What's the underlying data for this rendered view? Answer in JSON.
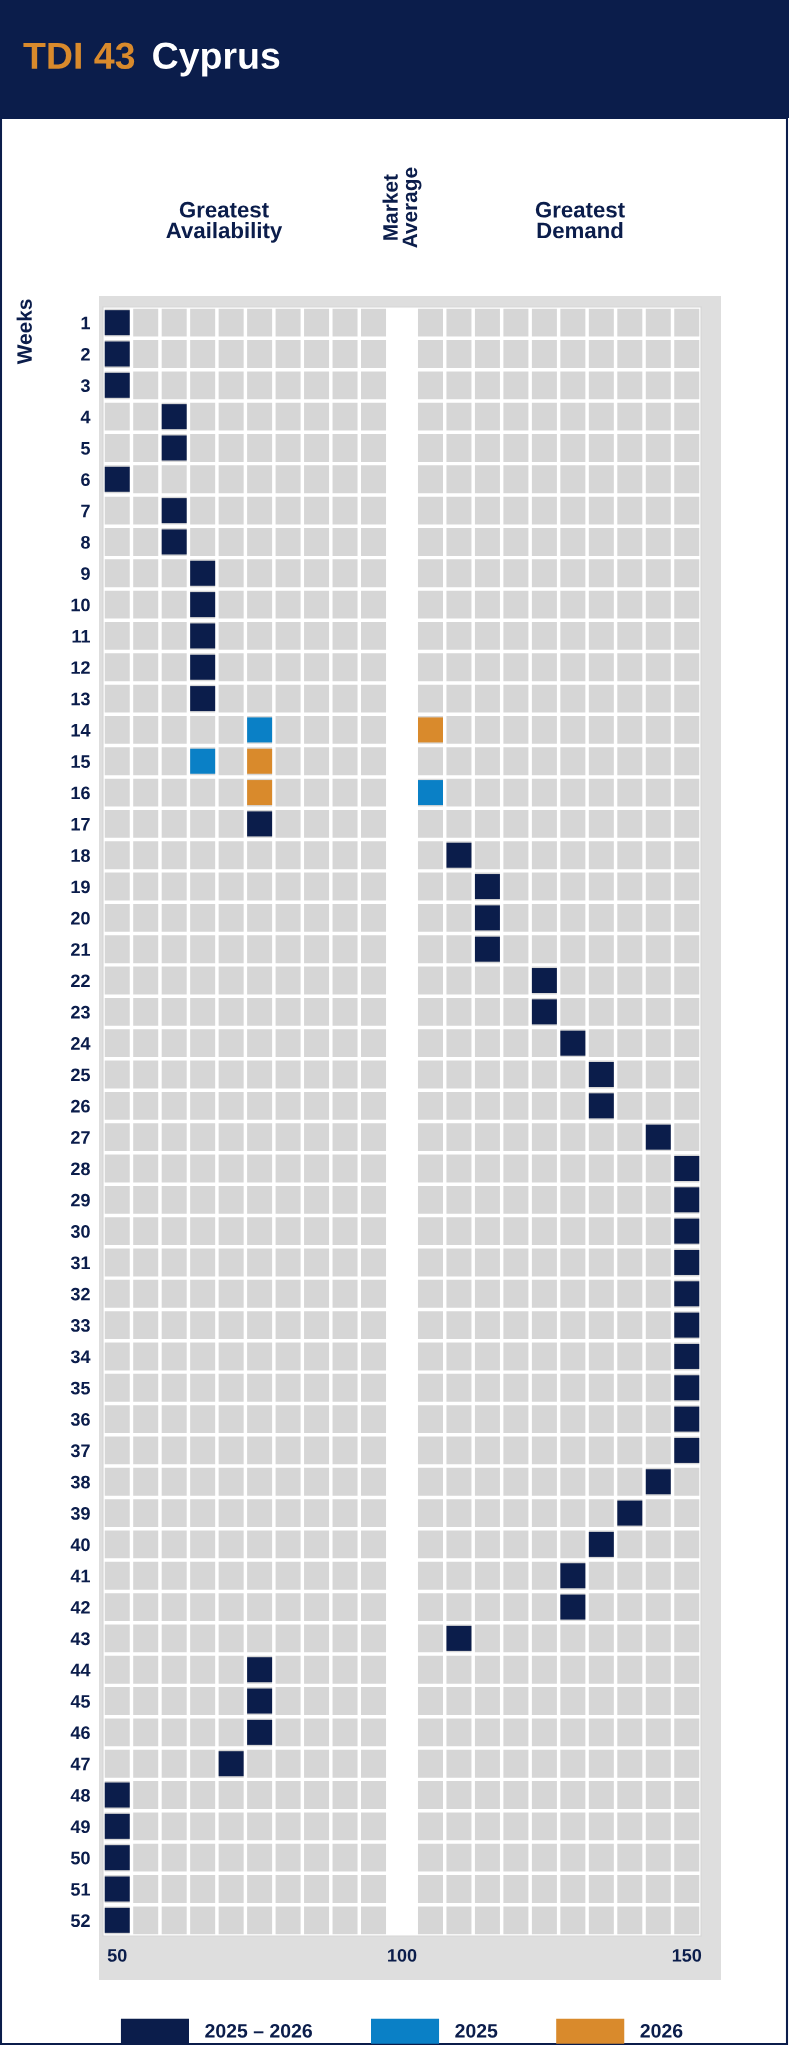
{
  "chart_data": {
    "type": "scatter",
    "orientation": "horizontal",
    "title": "TDI 43",
    "subtitle": "Cyprus",
    "ylabel": "Weeks",
    "categories": [
      "1",
      "2",
      "3",
      "4",
      "5",
      "6",
      "7",
      "8",
      "9",
      "10",
      "11",
      "12",
      "13",
      "14",
      "15",
      "16",
      "17",
      "18",
      "19",
      "20",
      "21",
      "22",
      "23",
      "24",
      "25",
      "26",
      "27",
      "28",
      "29",
      "30",
      "31",
      "32",
      "33",
      "34",
      "35",
      "36",
      "37",
      "38",
      "39",
      "40",
      "41",
      "42",
      "43",
      "44",
      "45",
      "46",
      "47",
      "48",
      "49",
      "50",
      "51",
      "52"
    ],
    "series": [
      {
        "name": "2025 – 2026",
        "color": "#0b1d4b",
        "values": [
          50,
          50,
          50,
          60,
          60,
          50,
          60,
          60,
          65,
          65,
          65,
          65,
          65,
          null,
          null,
          null,
          75,
          110,
          115,
          115,
          115,
          125,
          125,
          130,
          135,
          135,
          145,
          150,
          150,
          150,
          150,
          150,
          150,
          150,
          150,
          150,
          150,
          145,
          140,
          135,
          130,
          130,
          110,
          75,
          75,
          75,
          70,
          50,
          50,
          50,
          50,
          50
        ]
      },
      {
        "name": "2025",
        "color": "#0a80c6",
        "values": [
          null,
          null,
          null,
          null,
          null,
          null,
          null,
          null,
          null,
          null,
          null,
          null,
          null,
          75,
          65,
          105,
          null,
          null,
          null,
          null,
          null,
          null,
          null,
          null,
          null,
          null,
          null,
          null,
          null,
          null,
          null,
          null,
          null,
          null,
          null,
          null,
          null,
          null,
          null,
          null,
          null,
          null,
          null,
          null,
          null,
          null,
          null,
          null,
          null,
          null,
          null,
          null
        ]
      },
      {
        "name": "2026",
        "color": "#d98a2c",
        "values": [
          null,
          null,
          null,
          null,
          null,
          null,
          null,
          null,
          null,
          null,
          null,
          null,
          null,
          105,
          75,
          75,
          null,
          null,
          null,
          null,
          null,
          null,
          null,
          null,
          null,
          null,
          null,
          null,
          null,
          null,
          null,
          null,
          null,
          null,
          null,
          null,
          null,
          null,
          null,
          null,
          null,
          null,
          null,
          null,
          null,
          null,
          null,
          null,
          null,
          null,
          null,
          null
        ]
      }
    ],
    "xlim": [
      47.5,
      152.5
    ],
    "xticks": [
      50,
      100,
      150
    ],
    "ref_lines": [
      {
        "axis": "x",
        "value": 100,
        "label": "Market\nAverage",
        "color": "#ffffff"
      }
    ],
    "annotations": [
      "Greatest\nAvailability",
      "Greatest\nDemand"
    ],
    "marker": "square",
    "grid": true,
    "legend": "bottom"
  }
}
